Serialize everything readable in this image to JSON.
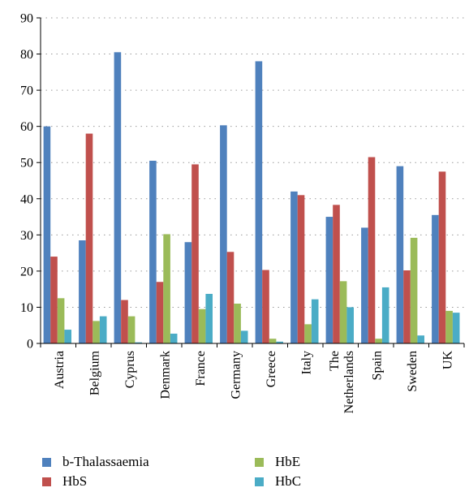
{
  "chart_data": {
    "type": "bar",
    "title": "",
    "xlabel": "",
    "ylabel": "",
    "ylim": [
      0,
      90
    ],
    "yticks": [
      0,
      10,
      20,
      30,
      40,
      50,
      60,
      70,
      80,
      90
    ],
    "grid": "horizontal dotted",
    "legend_position": "bottom",
    "categories": [
      [
        "Austria"
      ],
      [
        "Belgium"
      ],
      [
        "Cyprus"
      ],
      [
        "Denmark"
      ],
      [
        "France"
      ],
      [
        "Germany"
      ],
      [
        "Greece"
      ],
      [
        "Italy"
      ],
      [
        "The",
        "Netherlands"
      ],
      [
        "Spain"
      ],
      [
        "Sweden"
      ],
      [
        "UK"
      ]
    ],
    "series": [
      {
        "name": "b-Thalassaemia",
        "color": "#4f81bd",
        "values": [
          60,
          28.5,
          80.5,
          50.5,
          28,
          60.3,
          78,
          42,
          35,
          32,
          49,
          35.5
        ]
      },
      {
        "name": "HbS",
        "color": "#c0504d",
        "values": [
          24,
          58,
          12,
          17,
          49.5,
          25.3,
          20.3,
          41,
          38.3,
          51.5,
          20.2,
          47.5
        ]
      },
      {
        "name": "HbE",
        "color": "#9bbb59",
        "values": [
          12.5,
          6.2,
          7.5,
          30.2,
          9.5,
          11,
          1.3,
          5.3,
          17.2,
          1.3,
          29.2,
          9
        ]
      },
      {
        "name": "HbC",
        "color": "#4bacc6",
        "values": [
          3.8,
          7.5,
          0.3,
          2.7,
          13.7,
          3.5,
          0.5,
          12.2,
          10,
          15.5,
          2.2,
          8.5
        ]
      }
    ]
  }
}
